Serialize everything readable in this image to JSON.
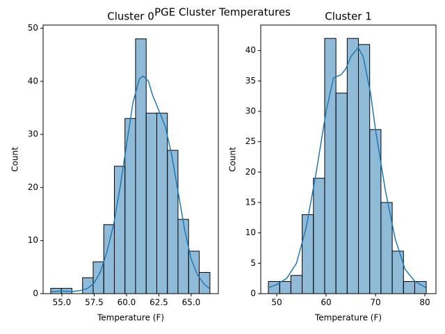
{
  "title": "PGE Cluster Temperatures",
  "chart_data": [
    {
      "type": "histogram",
      "title": "Cluster 0",
      "x_label": "Temperature (F)",
      "y_label": "Count",
      "bins": [
        54.14,
        54.96,
        55.78,
        56.6,
        57.42,
        58.24,
        59.06,
        59.88,
        60.7,
        61.52,
        62.34,
        63.16,
        63.98,
        64.8,
        65.62,
        66.45
      ],
      "values": [
        1,
        1,
        0,
        3,
        6,
        13,
        24,
        33,
        48,
        34,
        34,
        27,
        14,
        8,
        4
      ],
      "color": "rgba(31,119,180,0.5)",
      "edge_color": "#000000",
      "kde": {
        "color": "#1f77b4",
        "x": [
          54.2,
          55.0,
          55.8,
          56.5,
          57.0,
          57.5,
          58.0,
          58.5,
          59.0,
          59.5,
          60.0,
          60.5,
          61.0,
          61.3,
          61.7,
          62.0,
          62.5,
          63.0,
          63.5,
          64.0,
          64.5,
          65.0,
          65.5,
          66.0,
          66.4
        ],
        "values": [
          0.4,
          0.5,
          0.4,
          0.6,
          1.0,
          2.0,
          4.2,
          8.0,
          13.0,
          20.0,
          28.0,
          36.0,
          40.5,
          41.0,
          40.0,
          37.5,
          34.5,
          31.5,
          26.0,
          19.0,
          12.0,
          6.5,
          3.5,
          1.8,
          1.0
        ]
      },
      "xlim": [
        53.55,
        67.1
      ],
      "ylim": [
        0,
        50.6
      ],
      "xticks": [
        {
          "value": 55,
          "label": "55.0"
        },
        57.5,
        {
          "value": 60,
          "label": "60.0"
        },
        62.5,
        {
          "value": 65,
          "label": "65.0"
        }
      ],
      "yticks": [
        0,
        10,
        20,
        30,
        40,
        50
      ]
    },
    {
      "type": "histogram",
      "title": "Cluster 1",
      "x_label": "Temperature (F)",
      "y_label": "Count",
      "bins": [
        48.31,
        50.59,
        52.87,
        55.15,
        57.43,
        59.71,
        61.99,
        64.27,
        66.55,
        68.83,
        71.11,
        73.39,
        75.67,
        77.95,
        80.28
      ],
      "values": [
        2,
        2,
        3,
        13,
        19,
        42,
        33,
        42,
        41,
        27,
        15,
        7,
        2,
        2
      ],
      "color": "rgba(31,119,180,0.5)",
      "edge_color": "#000000",
      "kde": {
        "color": "#1f77b4",
        "x": [
          48.3,
          50.0,
          52.0,
          54.0,
          56.0,
          58.0,
          60.0,
          61.5,
          63.0,
          64.0,
          65.0,
          66.5,
          67.5,
          69.0,
          70.0,
          72.0,
          74.0,
          76.0,
          78.0,
          80.2
        ],
        "values": [
          1.0,
          1.5,
          2.5,
          5.0,
          11.0,
          20.0,
          30.0,
          35.5,
          36.0,
          37.0,
          39.0,
          40.5,
          39.0,
          33.0,
          27.0,
          17.0,
          9.0,
          4.0,
          2.0,
          1.0
        ]
      },
      "xlim": [
        46.76,
        82.25
      ],
      "ylim": [
        0,
        44.2
      ],
      "xticks": [
        50,
        60,
        70,
        80
      ],
      "yticks": [
        0,
        5,
        10,
        15,
        20,
        25,
        30,
        35,
        40
      ]
    }
  ]
}
